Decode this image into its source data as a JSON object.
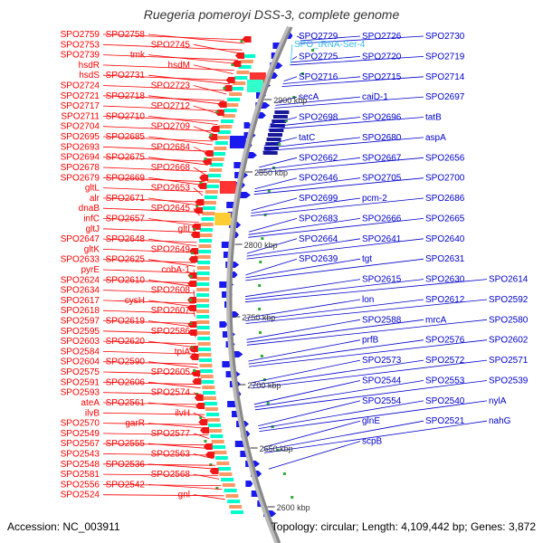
{
  "title": "Ruegeria pomeroyi DSS-3, complete genome",
  "footer": {
    "accession": "Accession: NC_003911",
    "topology": "Topology: circular; Length: 4,109,442 bp; Genes: 3,872"
  },
  "colors": {
    "reverse_label": "#ff0000",
    "forward_label": "#0000cc",
    "rna_label": "#33bbee",
    "backbone": "#888888",
    "forward_arrow": "#1a1aee",
    "reverse_arrow": "#ee1a1a"
  },
  "ticks": [
    "2900 kbp",
    "2850 kbp",
    "2800 kbp",
    "2750 kbp",
    "2700 kbp",
    "2650 kbp",
    "2600 kbp"
  ],
  "left_labels": [
    "SPO2759",
    "SPO2758",
    "SPO2753",
    "SPO2745",
    "SPO2739",
    "tmk",
    "hsdR",
    "hsdM",
    "hsdS",
    "SPO2731",
    "SPO2724",
    "SPO2723",
    "SPO2721",
    "SPO2718",
    "SPO2717",
    "SPO2712",
    "SPO2711",
    "SPO2710",
    "SPO2704",
    "SPO2709",
    "SPO2695",
    "SPO2685",
    "SPO2693",
    "SPO2684",
    "SPO2694",
    "SPO2675",
    "SPO2678",
    "SPO2668",
    "SPO2679",
    "SPO2669",
    "gltL",
    "SPO2653",
    "alr",
    "SPO2671",
    "dnaB",
    "SPO2645",
    "infC",
    "SPO2657",
    "gltJ",
    "gltI",
    "SPO2647",
    "SPO2648",
    "gltK",
    "SPO2649",
    "SPO2633",
    "SPO2625",
    "pyrE",
    "cobA-1",
    "SPO2624",
    "SPO2610",
    "SPO2634",
    "SPO2608",
    "SPO2617",
    "cysH",
    "SPO2618",
    "SPO2607",
    "SPO2597",
    "SPO2619",
    "SPO2595",
    "SPO2586",
    "SPO2603",
    "SPO2620",
    "SPO2584",
    "tpiA",
    "SPO2604",
    "SPO2590",
    "SPO2575",
    "SPO2605",
    "SPO2591",
    "SPO2606",
    "SPO2593",
    "SPO2574",
    "ateA",
    "SPO2561",
    "ilvB",
    "ilvH",
    "SPO2570",
    "garR",
    "SPO2549",
    "SPO2577",
    "SPO2567",
    "SPO2555",
    "SPO2543",
    "SPO2563",
    "SPO2548",
    "SPO2536",
    "SPO2581",
    "SPO2568",
    "SPO2556",
    "SPO2542",
    "SPO2524",
    "gnl"
  ],
  "right_labels": [
    "SPO2729",
    "SPO2726",
    "SPO2730",
    "SPO2725",
    "SPO2720",
    "SPO2719",
    "SPO2716",
    "SPO2715",
    "SPO2714",
    "secA",
    "caiD-1",
    "SPO2697",
    "SPO2698",
    "SPO2696",
    "tatB",
    "tatC",
    "SPO2680",
    "aspA",
    "SPO2662",
    "SPO2667",
    "SPO2656",
    "SPO2646",
    "SPO2705",
    "SPO2700",
    "SPO2699",
    "pcm-2",
    "SPO2686",
    "SPO2683",
    "SPO2666",
    "SPO2665",
    "SPO2664",
    "SPO2641",
    "SPO2640",
    "SPO2639",
    "tgt",
    "SPO2631",
    "SPO2615",
    "SPO2630",
    "SPO2614",
    "lon",
    "SPO2612",
    "SPO2592",
    "SPO2588",
    "mrcA",
    "SPO2580",
    "prfB",
    "SPO2576",
    "SPO2602",
    "SPO2573",
    "SPO2572",
    "SPO2571",
    "SPO2544",
    "SPO2553",
    "SPO2539",
    "SPO2554",
    "SPO2540",
    "nylA",
    "glnE",
    "SPO2521",
    "nahG",
    "scpB"
  ],
  "rna_label": "SPO_tRNA-Ser-4"
}
